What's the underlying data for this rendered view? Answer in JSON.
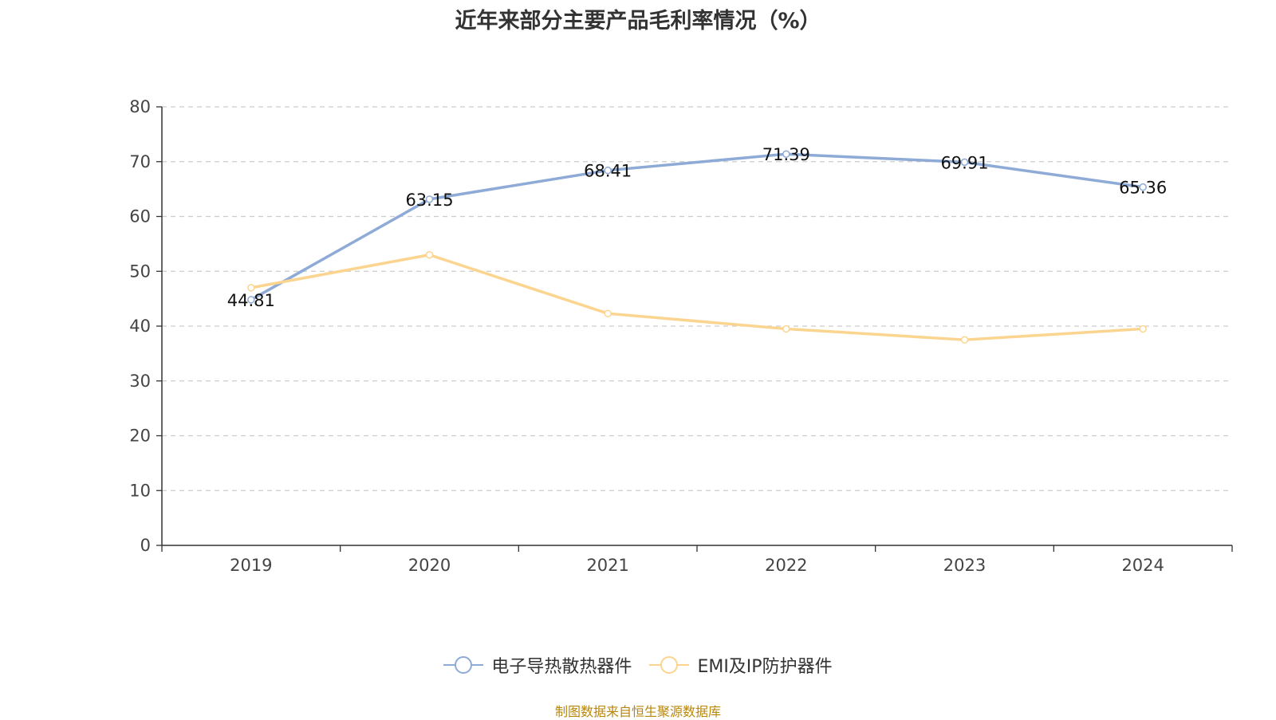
{
  "title": "近年来部分主要产品毛利率情况（%）",
  "source": "制图数据来自恒生聚源数据库",
  "chart_data": {
    "type": "line",
    "categories": [
      "2019",
      "2020",
      "2021",
      "2022",
      "2023",
      "2024"
    ],
    "ylim": [
      0,
      80
    ],
    "yticks": [
      0,
      10,
      20,
      30,
      40,
      50,
      60,
      70,
      80
    ],
    "grid": true,
    "legend_position": "bottom-center",
    "series": [
      {
        "name": "电子导热散热器件",
        "color": "#8eaad6",
        "values": [
          44.81,
          63.15,
          68.41,
          71.39,
          69.91,
          65.36
        ],
        "labels": [
          "44.81",
          "63.15",
          "68.41",
          "71.39",
          "69.91",
          "65.36"
        ]
      },
      {
        "name": "EMI及IP防护器件",
        "color": "#fbd58f",
        "values": [
          47.0,
          53.0,
          42.3,
          39.5,
          37.5,
          39.5
        ],
        "labels": []
      }
    ]
  }
}
